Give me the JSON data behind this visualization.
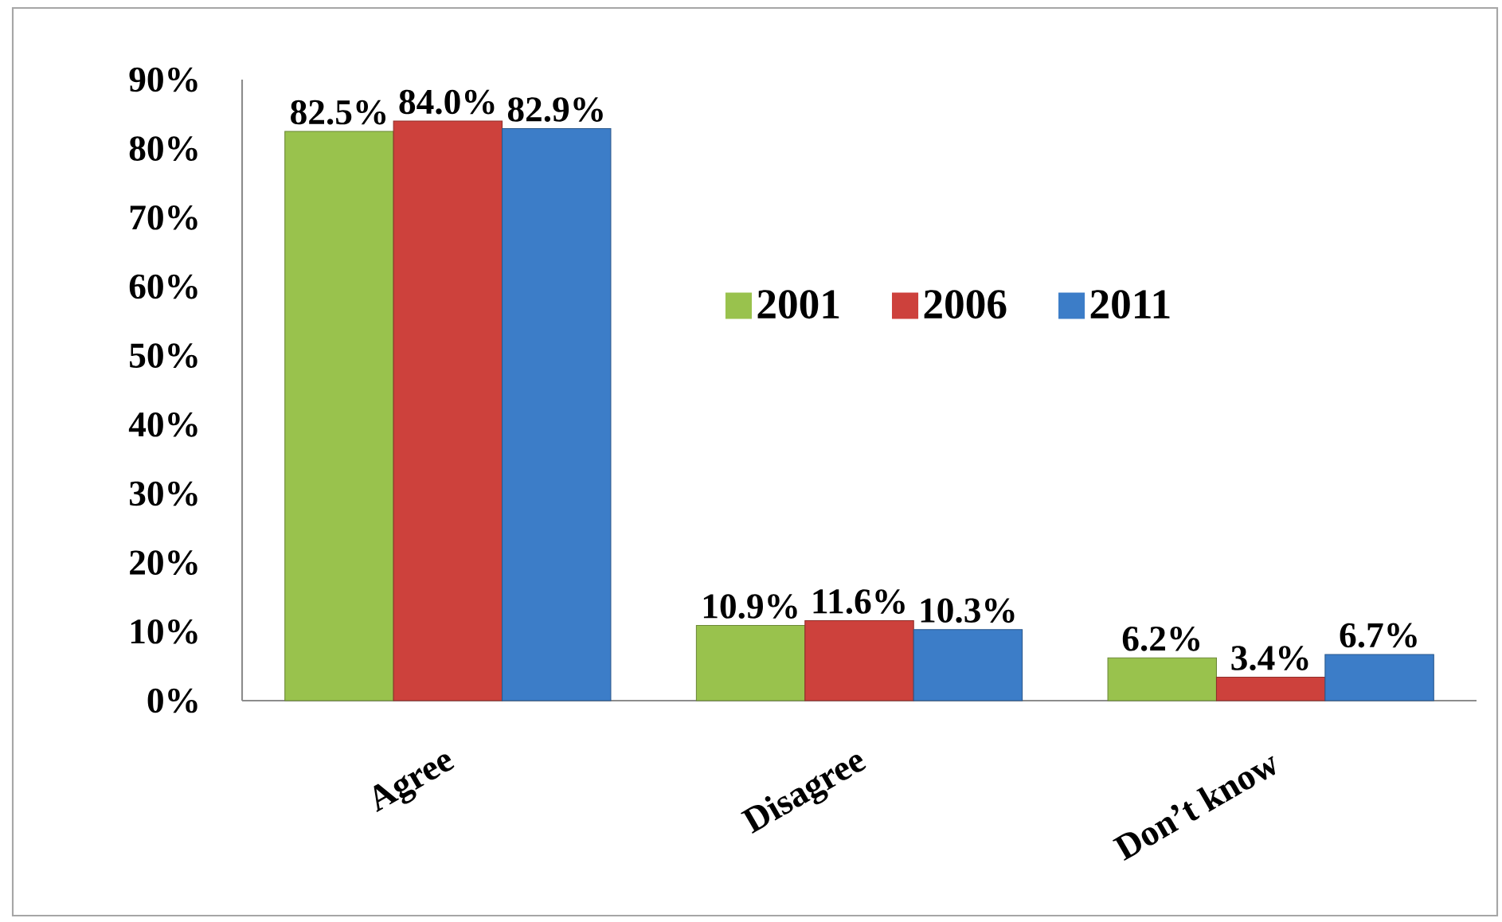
{
  "chart_data": {
    "type": "bar",
    "categories": [
      "Agree",
      "Disagree",
      "Don’t know"
    ],
    "series": [
      {
        "name": "2001",
        "color": "#99C24D",
        "values": [
          82.5,
          10.9,
          6.2
        ],
        "value_labels": [
          "82.5%",
          "10.9%",
          "6.2%"
        ]
      },
      {
        "name": "2006",
        "color": "#CD413C",
        "values": [
          84.0,
          11.6,
          3.4
        ],
        "value_labels": [
          "84.0%",
          "11.6%",
          "3.4%"
        ]
      },
      {
        "name": "2011",
        "color": "#3C7DC8",
        "values": [
          82.9,
          10.3,
          6.7
        ],
        "value_labels": [
          "82.9%",
          "10.3%",
          "6.7%"
        ]
      }
    ],
    "ylim": [
      0,
      90
    ],
    "yticks": [
      {
        "value": 0,
        "label": "0%"
      },
      {
        "value": 10,
        "label": "10%"
      },
      {
        "value": 20,
        "label": "20%"
      },
      {
        "value": 30,
        "label": "30%"
      },
      {
        "value": 40,
        "label": "40%"
      },
      {
        "value": 50,
        "label": "50%"
      },
      {
        "value": 60,
        "label": "60%"
      },
      {
        "value": 70,
        "label": "70%"
      },
      {
        "value": 80,
        "label": "80%"
      },
      {
        "value": 90,
        "label": "90%"
      }
    ],
    "legend": "center"
  }
}
